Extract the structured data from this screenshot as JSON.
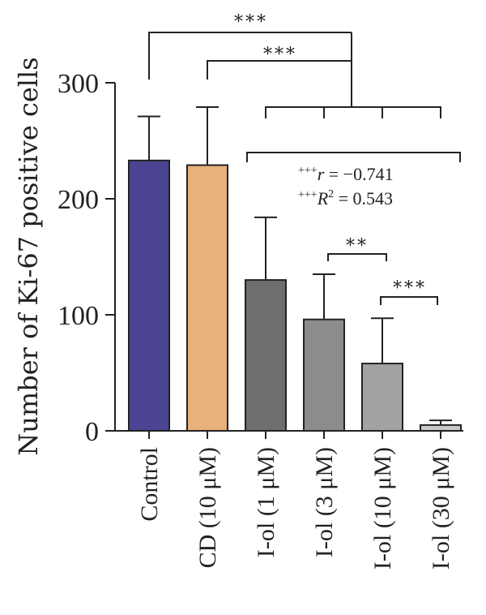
{
  "chart_data": {
    "type": "bar",
    "ylabel": "Number of Ki-67 positive cells",
    "ylim": [
      0,
      300
    ],
    "yticks": [
      0,
      100,
      200,
      300
    ],
    "categories": [
      "Control",
      "CD (10 μM)",
      "I-ol (1 μM)",
      "I-ol (3 μM)",
      "I-ol (10 μM)",
      "I-ol (30 μM)"
    ],
    "values": [
      233,
      229,
      130,
      96,
      58,
      5
    ],
    "errors": [
      38,
      50,
      54,
      39,
      39,
      4
    ],
    "colors": [
      "#4b4492",
      "#e8b07c",
      "#6e6e6e",
      "#8c8c8c",
      "#a3a3a6",
      "#c9c9cc"
    ],
    "significance": [
      {
        "label": "***",
        "from": 0,
        "to": [
          2,
          3,
          4,
          5
        ]
      },
      {
        "label": "***",
        "from": 1,
        "to": [
          2,
          3,
          4,
          5
        ]
      },
      {
        "label": "**",
        "pair": [
          3,
          4
        ]
      },
      {
        "label": "***",
        "pair": [
          4,
          5
        ]
      }
    ],
    "annotation": {
      "r_prefix": "+++",
      "r_label": "r",
      "r_value": " = −0.741",
      "R2_prefix": "+++",
      "R2_label": "R",
      "R2_sup": "2",
      "R2_value": " = 0.543"
    }
  }
}
